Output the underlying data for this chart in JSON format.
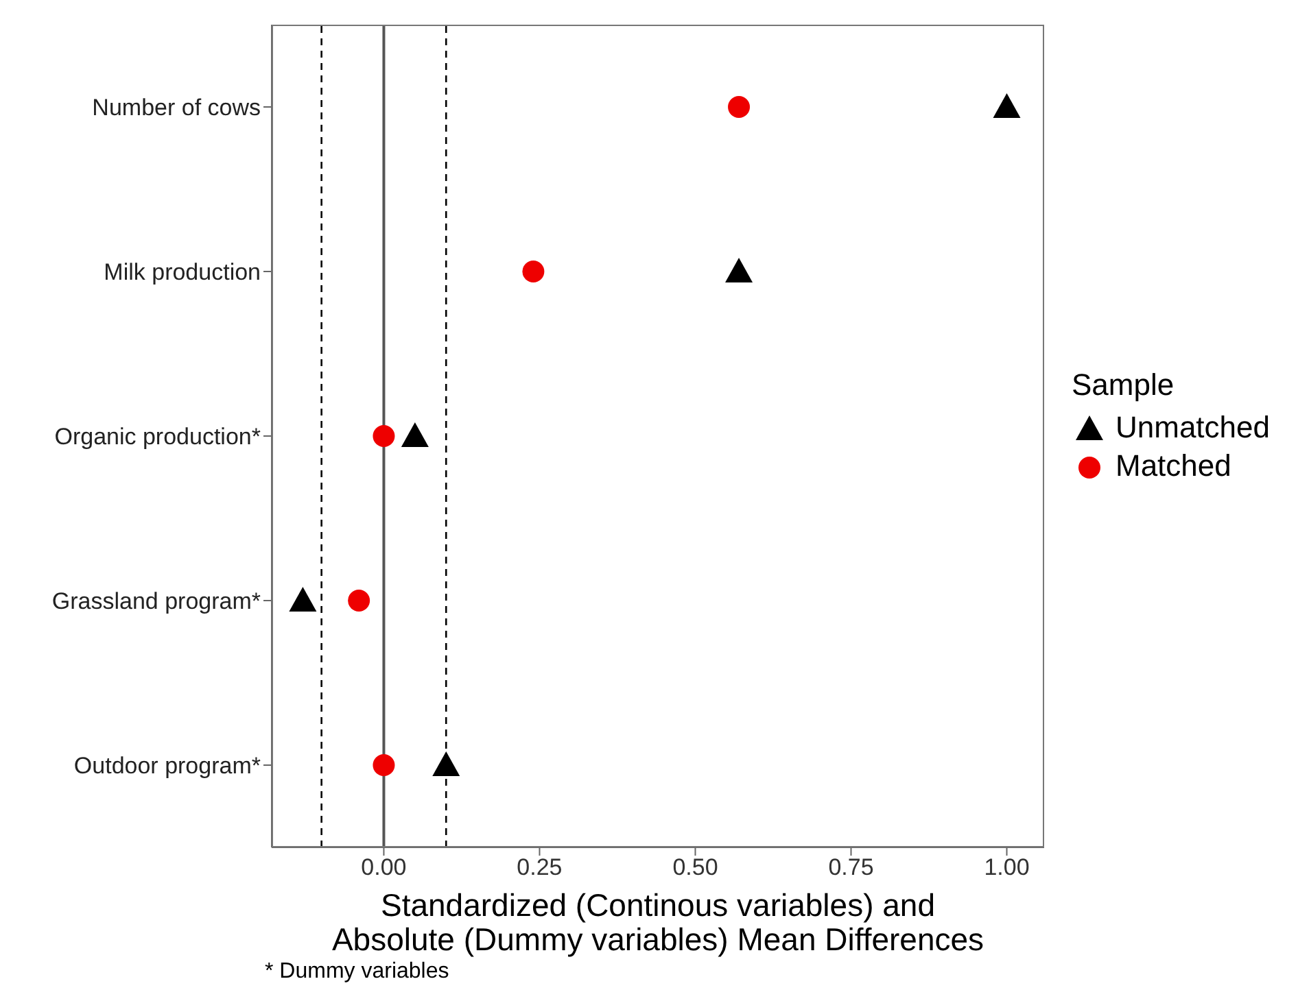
{
  "chart_data": {
    "type": "scatter",
    "orientation": "horizontal",
    "categories": [
      "Number of cows",
      "Milk production",
      "Organic production*",
      "Grassland program*",
      "Outdoor program*"
    ],
    "series": [
      {
        "name": "Unmatched",
        "color": "#000000",
        "marker": "triangle",
        "values": [
          1.0,
          0.57,
          0.05,
          -0.13,
          0.1
        ]
      },
      {
        "name": "Matched",
        "color": "#ee0000",
        "marker": "circle",
        "values": [
          0.57,
          0.24,
          0.0,
          -0.04,
          0.0
        ]
      }
    ],
    "xlim": [
      -0.18,
      1.06
    ],
    "xticks": [
      {
        "value": 0,
        "label": "0.00"
      },
      {
        "value": 0.25,
        "label": "0.25"
      },
      {
        "value": 0.5,
        "label": "0.50"
      },
      {
        "value": 0.75,
        "label": "0.75"
      },
      {
        "value": 1,
        "label": "1.00"
      }
    ],
    "xlabel": "Standardized (Continous variables) and\nAbsolute (Dummy variables) Mean Differences",
    "legend_title": "Sample",
    "legend": "right",
    "grid": false,
    "ref_lines": [
      {
        "axis": "x",
        "value": -0.1,
        "line_style": "dashed",
        "color": "#000000"
      },
      {
        "axis": "x",
        "value": 0,
        "line_style": "solid",
        "color": "#555555"
      },
      {
        "axis": "x",
        "value": 0.1,
        "line_style": "dashed",
        "color": "#000000"
      }
    ],
    "annotations": [
      "* Dummy variables"
    ]
  }
}
